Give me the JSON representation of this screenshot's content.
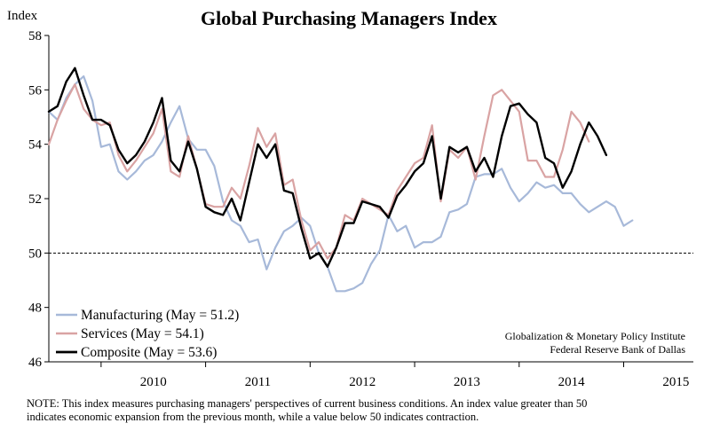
{
  "chart_data": {
    "type": "line",
    "title": "Global Purchasing Managers Index",
    "ylabel": "Index",
    "ylim": [
      46,
      58
    ],
    "yticks": [
      46,
      48,
      50,
      52,
      54,
      56,
      58
    ],
    "x_start": "2009-07",
    "x_end": "2015-09",
    "xticks": [
      "2010",
      "2011",
      "2012",
      "2013",
      "2014",
      "2015"
    ],
    "reference_line": 50,
    "grid": false,
    "legend_position": "bottom-left",
    "series": [
      {
        "name": "Manufacturing (May = 51.2)",
        "color": "#a7b9d9",
        "width": 2.2,
        "values": [
          [
            "2009-07",
            55.2
          ],
          [
            "2009-08",
            54.9
          ],
          [
            "2009-09",
            55.7
          ],
          [
            "2009-10",
            56.2
          ],
          [
            "2009-11",
            56.5
          ],
          [
            "2009-12",
            55.6
          ],
          [
            "2010-01",
            53.9
          ],
          [
            "2010-02",
            54.0
          ],
          [
            "2010-03",
            53.0
          ],
          [
            "2010-04",
            52.7
          ],
          [
            "2010-05",
            53.0
          ],
          [
            "2010-06",
            53.4
          ],
          [
            "2010-07",
            53.6
          ],
          [
            "2010-08",
            54.1
          ],
          [
            "2010-09",
            54.8
          ],
          [
            "2010-10",
            55.4
          ],
          [
            "2010-11",
            54.2
          ],
          [
            "2010-12",
            53.8
          ],
          [
            "2011-01",
            53.8
          ],
          [
            "2011-02",
            53.2
          ],
          [
            "2011-03",
            51.9
          ],
          [
            "2011-04",
            51.2
          ],
          [
            "2011-05",
            51.0
          ],
          [
            "2011-06",
            50.4
          ],
          [
            "2011-07",
            50.5
          ],
          [
            "2011-08",
            49.4
          ],
          [
            "2011-09",
            50.2
          ],
          [
            "2011-10",
            50.8
          ],
          [
            "2011-11",
            51.0
          ],
          [
            "2011-12",
            51.3
          ],
          [
            "2012-01",
            51.0
          ],
          [
            "2012-02",
            50.0
          ],
          [
            "2012-03",
            49.5
          ],
          [
            "2012-04",
            48.6
          ],
          [
            "2012-05",
            48.6
          ],
          [
            "2012-06",
            48.7
          ],
          [
            "2012-07",
            48.9
          ],
          [
            "2012-08",
            49.6
          ],
          [
            "2012-09",
            50.1
          ],
          [
            "2012-10",
            51.4
          ],
          [
            "2012-11",
            50.8
          ],
          [
            "2012-12",
            51.0
          ],
          [
            "2013-01",
            50.2
          ],
          [
            "2013-02",
            50.4
          ],
          [
            "2013-03",
            50.4
          ],
          [
            "2013-04",
            50.6
          ],
          [
            "2013-05",
            51.5
          ],
          [
            "2013-06",
            51.6
          ],
          [
            "2013-07",
            51.8
          ],
          [
            "2013-08",
            52.8
          ],
          [
            "2013-09",
            52.9
          ],
          [
            "2013-10",
            52.9
          ],
          [
            "2013-11",
            53.1
          ],
          [
            "2013-12",
            52.4
          ],
          [
            "2014-01",
            51.9
          ],
          [
            "2014-02",
            52.2
          ],
          [
            "2014-03",
            52.6
          ],
          [
            "2014-04",
            52.4
          ],
          [
            "2014-05",
            52.5
          ],
          [
            "2014-06",
            52.2
          ],
          [
            "2014-07",
            52.2
          ],
          [
            "2014-08",
            51.8
          ],
          [
            "2014-09",
            51.5
          ],
          [
            "2014-10",
            51.7
          ],
          [
            "2014-11",
            51.9
          ],
          [
            "2014-12",
            51.7
          ],
          [
            "2015-01",
            51.0
          ],
          [
            "2015-02",
            51.2
          ]
        ]
      },
      {
        "name": "Services (May = 54.1)",
        "color": "#d9a3a3",
        "width": 2.2,
        "values": [
          [
            "2009-07",
            54.0
          ],
          [
            "2009-08",
            54.9
          ],
          [
            "2009-09",
            55.6
          ],
          [
            "2009-10",
            56.2
          ],
          [
            "2009-11",
            55.3
          ],
          [
            "2009-12",
            54.9
          ],
          [
            "2010-01",
            54.7
          ],
          [
            "2010-02",
            54.8
          ],
          [
            "2010-03",
            53.6
          ],
          [
            "2010-04",
            53.0
          ],
          [
            "2010-05",
            53.4
          ],
          [
            "2010-06",
            53.9
          ],
          [
            "2010-07",
            54.4
          ],
          [
            "2010-08",
            55.3
          ],
          [
            "2010-09",
            53.0
          ],
          [
            "2010-10",
            52.8
          ],
          [
            "2010-11",
            54.3
          ],
          [
            "2010-12",
            53.1
          ],
          [
            "2011-01",
            51.8
          ],
          [
            "2011-02",
            51.7
          ],
          [
            "2011-03",
            51.7
          ],
          [
            "2011-04",
            52.4
          ],
          [
            "2011-05",
            52.0
          ],
          [
            "2011-06",
            53.2
          ],
          [
            "2011-07",
            54.6
          ],
          [
            "2011-08",
            53.9
          ],
          [
            "2011-09",
            54.4
          ],
          [
            "2011-10",
            52.5
          ],
          [
            "2011-11",
            52.7
          ],
          [
            "2011-12",
            51.2
          ],
          [
            "2012-01",
            50.1
          ],
          [
            "2012-02",
            50.4
          ],
          [
            "2012-03",
            49.8
          ],
          [
            "2012-04",
            50.2
          ],
          [
            "2012-05",
            51.4
          ],
          [
            "2012-06",
            51.2
          ],
          [
            "2012-07",
            52.0
          ],
          [
            "2012-08",
            51.8
          ],
          [
            "2012-09",
            51.6
          ],
          [
            "2012-10",
            51.4
          ],
          [
            "2012-11",
            52.3
          ],
          [
            "2012-12",
            52.8
          ],
          [
            "2013-01",
            53.3
          ],
          [
            "2013-02",
            53.5
          ],
          [
            "2013-03",
            54.7
          ],
          [
            "2013-04",
            51.9
          ],
          [
            "2013-05",
            53.8
          ],
          [
            "2013-06",
            53.5
          ],
          [
            "2013-07",
            53.9
          ],
          [
            "2013-08",
            52.7
          ],
          [
            "2013-09",
            54.3
          ],
          [
            "2013-10",
            55.8
          ],
          [
            "2013-11",
            56.0
          ],
          [
            "2013-12",
            55.6
          ],
          [
            "2014-01",
            55.2
          ],
          [
            "2014-02",
            53.4
          ],
          [
            "2014-03",
            53.4
          ],
          [
            "2014-04",
            52.8
          ],
          [
            "2014-05",
            52.8
          ],
          [
            "2014-06",
            53.8
          ],
          [
            "2014-07",
            55.2
          ],
          [
            "2014-08",
            54.8
          ],
          [
            "2014-09",
            54.1
          ]
        ]
      },
      {
        "name": "Composite (May = 53.6)",
        "color": "#000000",
        "width": 2.4,
        "values": [
          [
            "2009-07",
            55.2
          ],
          [
            "2009-08",
            55.4
          ],
          [
            "2009-09",
            56.3
          ],
          [
            "2009-10",
            56.8
          ],
          [
            "2009-11",
            55.8
          ],
          [
            "2009-12",
            54.9
          ],
          [
            "2010-01",
            54.9
          ],
          [
            "2010-02",
            54.7
          ],
          [
            "2010-03",
            53.8
          ],
          [
            "2010-04",
            53.3
          ],
          [
            "2010-05",
            53.6
          ],
          [
            "2010-06",
            54.1
          ],
          [
            "2010-07",
            54.8
          ],
          [
            "2010-08",
            55.7
          ],
          [
            "2010-09",
            53.4
          ],
          [
            "2010-10",
            53.0
          ],
          [
            "2010-11",
            54.1
          ],
          [
            "2010-12",
            53.1
          ],
          [
            "2011-01",
            51.7
          ],
          [
            "2011-02",
            51.5
          ],
          [
            "2011-03",
            51.4
          ],
          [
            "2011-04",
            52.0
          ],
          [
            "2011-05",
            51.2
          ],
          [
            "2011-06",
            52.6
          ],
          [
            "2011-07",
            54.0
          ],
          [
            "2011-08",
            53.5
          ],
          [
            "2011-09",
            54.0
          ],
          [
            "2011-10",
            52.3
          ],
          [
            "2011-11",
            52.2
          ],
          [
            "2011-12",
            50.9
          ],
          [
            "2012-01",
            49.8
          ],
          [
            "2012-02",
            50.0
          ],
          [
            "2012-03",
            49.5
          ],
          [
            "2012-04",
            50.2
          ],
          [
            "2012-05",
            51.1
          ],
          [
            "2012-06",
            51.1
          ],
          [
            "2012-07",
            51.9
          ],
          [
            "2012-08",
            51.8
          ],
          [
            "2012-09",
            51.7
          ],
          [
            "2012-10",
            51.3
          ],
          [
            "2012-11",
            52.1
          ],
          [
            "2012-12",
            52.5
          ],
          [
            "2013-01",
            53.0
          ],
          [
            "2013-02",
            53.3
          ],
          [
            "2013-03",
            54.3
          ],
          [
            "2013-04",
            52.0
          ],
          [
            "2013-05",
            53.9
          ],
          [
            "2013-06",
            53.7
          ],
          [
            "2013-07",
            53.9
          ],
          [
            "2013-08",
            53.0
          ],
          [
            "2013-09",
            53.5
          ],
          [
            "2013-10",
            52.8
          ],
          [
            "2013-11",
            54.3
          ],
          [
            "2013-12",
            55.4
          ],
          [
            "2014-01",
            55.5
          ],
          [
            "2014-02",
            55.1
          ],
          [
            "2014-03",
            54.8
          ],
          [
            "2014-04",
            53.5
          ],
          [
            "2014-05",
            53.3
          ],
          [
            "2014-06",
            52.4
          ],
          [
            "2014-07",
            53.0
          ],
          [
            "2014-08",
            54.0
          ],
          [
            "2014-09",
            54.8
          ],
          [
            "2014-10",
            54.3
          ],
          [
            "2014-11",
            53.6
          ]
        ]
      }
    ]
  },
  "source": {
    "line1": "Globalization & Monetary Policy Institute",
    "line2": "Federal Reserve Bank of Dallas"
  },
  "note": {
    "line1": "NOTE: This index measures purchasing managers' perspectives of current business conditions.  An index value greater than 50",
    "line2": "indicates  economic expansion from the previous month, while a value below 50 indicates contraction."
  }
}
